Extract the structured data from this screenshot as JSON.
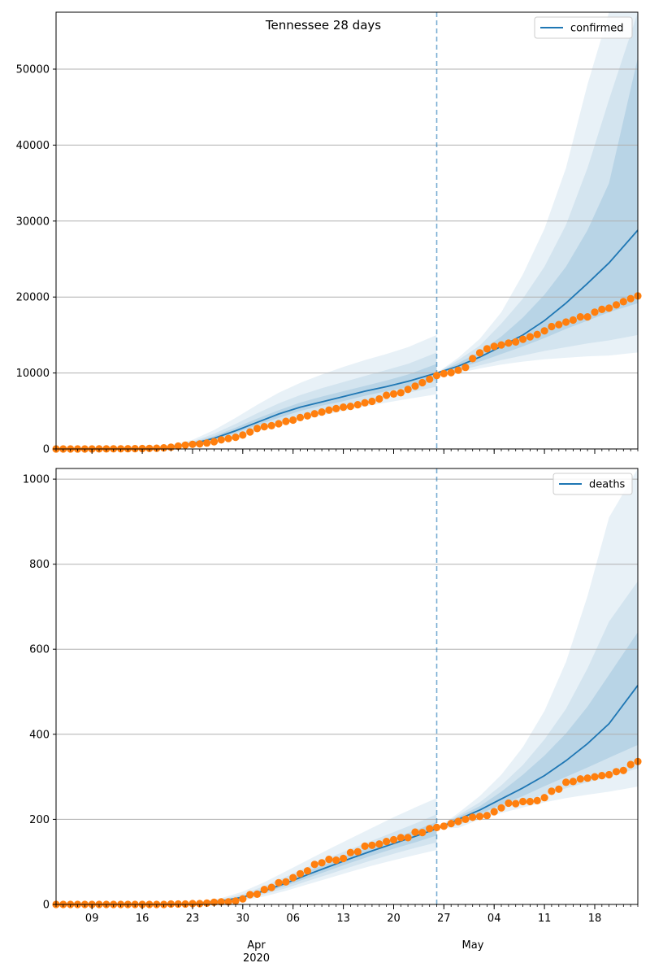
{
  "figure": {
    "title": "Tennessee 28 days",
    "month_labels": [
      "Apr",
      "May"
    ],
    "year_label": "2020"
  },
  "colors": {
    "model_line": "#1f77b4",
    "band": "#1f77b4",
    "observed_dots": "#ff7f0e",
    "forecast_divider": "#1f77b4",
    "grid": "#b0b0b0"
  },
  "chart_data": [
    {
      "type": "line",
      "name": "confirmed-panel",
      "legend": "confirmed",
      "legend_position": "top-right",
      "x_axis": {
        "type": "date",
        "start": "2020-03-04",
        "end": "2020-05-24",
        "tick_labels": [
          "09",
          "16",
          "23",
          "30",
          "06",
          "13",
          "20",
          "27",
          "04",
          "11",
          "18"
        ],
        "tick_dates": [
          "2020-03-09",
          "2020-03-16",
          "2020-03-23",
          "2020-03-30",
          "2020-04-06",
          "2020-04-13",
          "2020-04-20",
          "2020-04-27",
          "2020-05-04",
          "2020-05-11",
          "2020-05-18"
        ]
      },
      "ylim": [
        0,
        57500
      ],
      "yticks": [
        0,
        10000,
        20000,
        30000,
        40000,
        50000
      ],
      "grid": "horizontal",
      "forecast_start": "2020-04-26",
      "model_median": {
        "dates": [
          "2020-03-20",
          "2020-03-23",
          "2020-03-26",
          "2020-03-29",
          "2020-04-01",
          "2020-04-04",
          "2020-04-07",
          "2020-04-10",
          "2020-04-13",
          "2020-04-16",
          "2020-04-19",
          "2020-04-22",
          "2020-04-26",
          "2020-04-29",
          "2020-05-02",
          "2020-05-05",
          "2020-05-08",
          "2020-05-11",
          "2020-05-14",
          "2020-05-17",
          "2020-05-20",
          "2020-05-24"
        ],
        "values": [
          300,
          700,
          1400,
          2400,
          3500,
          4600,
          5500,
          6200,
          6900,
          7600,
          8200,
          8900,
          10000,
          10900,
          12100,
          13500,
          15000,
          16900,
          19200,
          21800,
          24500,
          28800
        ]
      },
      "bands": [
        {
          "label": "outer",
          "dates": [
            "2020-03-20",
            "2020-03-23",
            "2020-03-26",
            "2020-03-29",
            "2020-04-01",
            "2020-04-04",
            "2020-04-07",
            "2020-04-10",
            "2020-04-13",
            "2020-04-16",
            "2020-04-19",
            "2020-04-22",
            "2020-04-26",
            "2020-04-29",
            "2020-05-02",
            "2020-05-05",
            "2020-05-08",
            "2020-05-11",
            "2020-05-14",
            "2020-05-17",
            "2020-05-20",
            "2020-05-24"
          ],
          "lower": [
            150,
            400,
            800,
            1500,
            2300,
            3100,
            3800,
            4400,
            5000,
            5600,
            6100,
            6600,
            7200,
            10000,
            10600,
            11100,
            11500,
            11800,
            12000,
            12200,
            12300,
            12700
          ],
          "upper": [
            500,
            1200,
            2500,
            4100,
            5800,
            7400,
            8700,
            9800,
            10800,
            11700,
            12500,
            13400,
            15000,
            12000,
            14500,
            18000,
            23000,
            29000,
            37000,
            48000,
            57500,
            57500
          ]
        },
        {
          "label": "middle",
          "dates": [
            "2020-03-20",
            "2020-03-23",
            "2020-03-26",
            "2020-03-29",
            "2020-04-01",
            "2020-04-04",
            "2020-04-07",
            "2020-04-10",
            "2020-04-13",
            "2020-04-16",
            "2020-04-19",
            "2020-04-22",
            "2020-04-26",
            "2020-04-29",
            "2020-05-02",
            "2020-05-05",
            "2020-05-08",
            "2020-05-11",
            "2020-05-14",
            "2020-05-17",
            "2020-05-20",
            "2020-05-24"
          ],
          "lower": [
            200,
            500,
            1000,
            1800,
            2700,
            3600,
            4400,
            5100,
            5700,
            6300,
            6900,
            7400,
            8200,
            10300,
            11000,
            11700,
            12300,
            12900,
            13400,
            13900,
            14300,
            15000
          ],
          "upper": [
            420,
            1000,
            2000,
            3300,
            4700,
            6000,
            7100,
            8000,
            8800,
            9600,
            10400,
            11200,
            12700,
            11700,
            13600,
            16500,
            19800,
            24000,
            29500,
            37000,
            46000,
            57500
          ]
        },
        {
          "label": "inner",
          "dates": [
            "2020-03-20",
            "2020-03-23",
            "2020-03-26",
            "2020-03-29",
            "2020-04-01",
            "2020-04-04",
            "2020-04-07",
            "2020-04-10",
            "2020-04-13",
            "2020-04-16",
            "2020-04-19",
            "2020-04-22",
            "2020-04-26",
            "2020-04-29",
            "2020-05-02",
            "2020-05-05",
            "2020-05-08",
            "2020-05-11",
            "2020-05-14",
            "2020-05-17",
            "2020-05-20",
            "2020-05-24"
          ],
          "lower": [
            250,
            600,
            1200,
            2100,
            3100,
            4100,
            5000,
            5700,
            6300,
            7000,
            7600,
            8100,
            9100,
            10600,
            11500,
            12500,
            13500,
            14600,
            15800,
            16900,
            18000,
            19200
          ],
          "upper": [
            360,
            850,
            1700,
            2800,
            4000,
            5100,
            6100,
            6900,
            7600,
            8300,
            9000,
            9800,
            11200,
            11300,
            12800,
            14800,
            17300,
            20300,
            24000,
            28800,
            35000,
            51500
          ]
        }
      ],
      "observed": {
        "dates": [
          "2020-03-04",
          "2020-03-05",
          "2020-03-06",
          "2020-03-07",
          "2020-03-08",
          "2020-03-09",
          "2020-03-10",
          "2020-03-11",
          "2020-03-12",
          "2020-03-13",
          "2020-03-14",
          "2020-03-15",
          "2020-03-16",
          "2020-03-17",
          "2020-03-18",
          "2020-03-19",
          "2020-03-20",
          "2020-03-21",
          "2020-03-22",
          "2020-03-23",
          "2020-03-24",
          "2020-03-25",
          "2020-03-26",
          "2020-03-27",
          "2020-03-28",
          "2020-03-29",
          "2020-03-30",
          "2020-03-31",
          "2020-04-01",
          "2020-04-02",
          "2020-04-03",
          "2020-04-04",
          "2020-04-05",
          "2020-04-06",
          "2020-04-07",
          "2020-04-08",
          "2020-04-09",
          "2020-04-10",
          "2020-04-11",
          "2020-04-12",
          "2020-04-13",
          "2020-04-14",
          "2020-04-15",
          "2020-04-16",
          "2020-04-17",
          "2020-04-18",
          "2020-04-19",
          "2020-04-20",
          "2020-04-21",
          "2020-04-22",
          "2020-04-23",
          "2020-04-24",
          "2020-04-25",
          "2020-04-26",
          "2020-04-27",
          "2020-04-28",
          "2020-04-29",
          "2020-04-30",
          "2020-05-01",
          "2020-05-02",
          "2020-05-03",
          "2020-05-04",
          "2020-05-05",
          "2020-05-06",
          "2020-05-07",
          "2020-05-08",
          "2020-05-09",
          "2020-05-10",
          "2020-05-11",
          "2020-05-12",
          "2020-05-13",
          "2020-05-14",
          "2020-05-15",
          "2020-05-16",
          "2020-05-17",
          "2020-05-18",
          "2020-05-19",
          "2020-05-20",
          "2020-05-21",
          "2020-05-22",
          "2020-05-23",
          "2020-05-24"
        ],
        "values": [
          1,
          1,
          1,
          1,
          3,
          3,
          7,
          9,
          18,
          26,
          32,
          39,
          52,
          74,
          98,
          154,
          228,
          371,
          505,
          615,
          667,
          784,
          957,
          1203,
          1373,
          1537,
          1834,
          2239,
          2683,
          2933,
          3067,
          3321,
          3633,
          3802,
          4138,
          4362,
          4634,
          4862,
          5114,
          5308,
          5508,
          5610,
          5827,
          6079,
          6262,
          6589,
          7070,
          7238,
          7394,
          7842,
          8266,
          8726,
          9189,
          9667,
          9918,
          10052,
          10366,
          10735,
          11891,
          12661,
          13177,
          13502,
          13690,
          13938,
          14096,
          14441,
          14768,
          15077,
          15544,
          16111,
          16370,
          16699,
          16970,
          17388,
          17388,
          18011,
          18378,
          18532,
          18961,
          19394,
          19789,
          20145
        ]
      }
    },
    {
      "type": "line",
      "name": "deaths-panel",
      "legend": "deaths",
      "legend_position": "top-right",
      "x_axis": {
        "type": "date",
        "start": "2020-03-04",
        "end": "2020-05-24",
        "tick_labels": [
          "09",
          "16",
          "23",
          "30",
          "06",
          "13",
          "20",
          "27",
          "04",
          "11",
          "18"
        ],
        "tick_dates": [
          "2020-03-09",
          "2020-03-16",
          "2020-03-23",
          "2020-03-30",
          "2020-04-06",
          "2020-04-13",
          "2020-04-20",
          "2020-04-27",
          "2020-05-04",
          "2020-05-11",
          "2020-05-18"
        ]
      },
      "ylim": [
        0,
        1025
      ],
      "yticks": [
        0,
        200,
        400,
        600,
        800,
        1000
      ],
      "grid": "horizontal",
      "forecast_start": "2020-04-26",
      "model_median": {
        "dates": [
          "2020-03-24",
          "2020-03-27",
          "2020-03-30",
          "2020-04-02",
          "2020-04-05",
          "2020-04-08",
          "2020-04-11",
          "2020-04-14",
          "2020-04-17",
          "2020-04-20",
          "2020-04-23",
          "2020-04-26",
          "2020-04-29",
          "2020-05-02",
          "2020-05-05",
          "2020-05-08",
          "2020-05-11",
          "2020-05-14",
          "2020-05-17",
          "2020-05-20",
          "2020-05-24"
        ],
        "values": [
          3,
          8,
          17,
          32,
          50,
          70,
          89,
          108,
          126,
          143,
          160,
          178,
          200,
          222,
          248,
          274,
          303,
          338,
          378,
          425,
          515
        ]
      },
      "bands": [
        {
          "label": "outer",
          "dates": [
            "2020-03-24",
            "2020-03-27",
            "2020-03-30",
            "2020-04-02",
            "2020-04-05",
            "2020-04-08",
            "2020-04-11",
            "2020-04-14",
            "2020-04-17",
            "2020-04-20",
            "2020-04-23",
            "2020-04-26",
            "2020-04-29",
            "2020-05-02",
            "2020-05-05",
            "2020-05-08",
            "2020-05-11",
            "2020-05-14",
            "2020-05-17",
            "2020-05-20",
            "2020-05-24"
          ],
          "lower": [
            1,
            4,
            9,
            19,
            32,
            47,
            62,
            77,
            91,
            104,
            116,
            128,
            180,
            200,
            215,
            228,
            240,
            250,
            258,
            265,
            277
          ],
          "upper": [
            6,
            15,
            30,
            52,
            78,
            104,
            130,
            155,
            180,
            205,
            228,
            250,
            215,
            255,
            305,
            370,
            455,
            570,
            725,
            910,
            1025
          ]
        },
        {
          "label": "middle",
          "dates": [
            "2020-03-24",
            "2020-03-27",
            "2020-03-30",
            "2020-04-02",
            "2020-04-05",
            "2020-04-08",
            "2020-04-11",
            "2020-04-14",
            "2020-04-17",
            "2020-04-20",
            "2020-04-23",
            "2020-04-26",
            "2020-04-29",
            "2020-05-02",
            "2020-05-05",
            "2020-05-08",
            "2020-05-11",
            "2020-05-14",
            "2020-05-17",
            "2020-05-20",
            "2020-05-24"
          ],
          "lower": [
            2,
            5,
            12,
            24,
            38,
            55,
            71,
            88,
            104,
            119,
            133,
            146,
            186,
            207,
            225,
            242,
            258,
            273,
            287,
            300,
            320
          ],
          "upper": [
            5,
            12,
            24,
            43,
            65,
            88,
            110,
            130,
            150,
            170,
            190,
            212,
            210,
            240,
            280,
            328,
            388,
            460,
            555,
            665,
            760
          ]
        },
        {
          "label": "inner",
          "dates": [
            "2020-03-24",
            "2020-03-27",
            "2020-03-30",
            "2020-04-02",
            "2020-04-05",
            "2020-04-08",
            "2020-04-11",
            "2020-04-14",
            "2020-04-17",
            "2020-04-20",
            "2020-04-23",
            "2020-04-26",
            "2020-04-29",
            "2020-05-02",
            "2020-05-05",
            "2020-05-08",
            "2020-05-11",
            "2020-05-14",
            "2020-05-17",
            "2020-05-20",
            "2020-05-24"
          ],
          "lower": [
            2.5,
            6.5,
            14,
            28,
            44,
            62,
            80,
            98,
            115,
            131,
            146,
            162,
            192,
            213,
            234,
            255,
            278,
            300,
            322,
            345,
            375
          ],
          "upper": [
            4,
            10,
            20,
            37,
            56,
            78,
            98,
            118,
            137,
            155,
            174,
            194,
            206,
            231,
            265,
            305,
            350,
            402,
            465,
            540,
            640
          ]
        }
      ],
      "observed": {
        "dates": [
          "2020-03-04",
          "2020-03-05",
          "2020-03-06",
          "2020-03-07",
          "2020-03-08",
          "2020-03-09",
          "2020-03-10",
          "2020-03-11",
          "2020-03-12",
          "2020-03-13",
          "2020-03-14",
          "2020-03-15",
          "2020-03-16",
          "2020-03-17",
          "2020-03-18",
          "2020-03-19",
          "2020-03-20",
          "2020-03-21",
          "2020-03-22",
          "2020-03-23",
          "2020-03-24",
          "2020-03-25",
          "2020-03-26",
          "2020-03-27",
          "2020-03-28",
          "2020-03-29",
          "2020-03-30",
          "2020-03-31",
          "2020-04-01",
          "2020-04-02",
          "2020-04-03",
          "2020-04-04",
          "2020-04-05",
          "2020-04-06",
          "2020-04-07",
          "2020-04-08",
          "2020-04-09",
          "2020-04-10",
          "2020-04-11",
          "2020-04-12",
          "2020-04-13",
          "2020-04-14",
          "2020-04-15",
          "2020-04-16",
          "2020-04-17",
          "2020-04-18",
          "2020-04-19",
          "2020-04-20",
          "2020-04-21",
          "2020-04-22",
          "2020-04-23",
          "2020-04-24",
          "2020-04-25",
          "2020-04-26",
          "2020-04-27",
          "2020-04-28",
          "2020-04-29",
          "2020-04-30",
          "2020-05-01",
          "2020-05-02",
          "2020-05-03",
          "2020-05-04",
          "2020-05-05",
          "2020-05-06",
          "2020-05-07",
          "2020-05-08",
          "2020-05-09",
          "2020-05-10",
          "2020-05-11",
          "2020-05-12",
          "2020-05-13",
          "2020-05-14",
          "2020-05-15",
          "2020-05-16",
          "2020-05-17",
          "2020-05-18",
          "2020-05-19",
          "2020-05-20",
          "2020-05-21",
          "2020-05-22",
          "2020-05-23",
          "2020-05-24"
        ],
        "values": [
          0,
          0,
          0,
          0,
          0,
          0,
          0,
          0,
          0,
          0,
          0,
          0,
          0,
          0,
          0,
          0,
          1,
          1,
          1,
          2,
          2,
          3,
          5,
          6,
          6,
          8,
          13,
          23,
          24,
          35,
          40,
          51,
          53,
          63,
          72,
          79,
          94,
          98,
          106,
          104,
          108,
          122,
          124,
          137,
          139,
          142,
          148,
          152,
          157,
          157,
          170,
          169,
          178,
          181,
          184,
          190,
          195,
          200,
          205,
          207,
          209,
          218,
          227,
          238,
          237,
          242,
          242,
          244,
          251,
          266,
          271,
          287,
          289,
          295,
          297,
          300,
          303,
          305,
          312,
          315,
          329,
          336
        ]
      }
    }
  ]
}
